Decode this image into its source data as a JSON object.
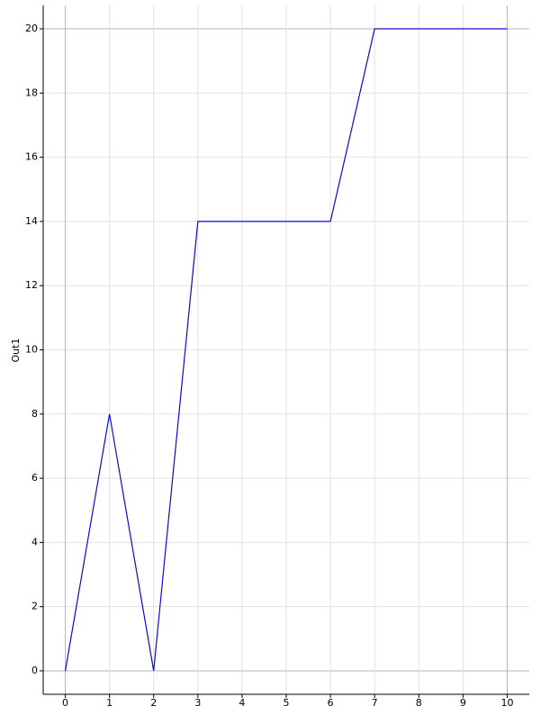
{
  "chart_data": {
    "type": "line",
    "y_label": "Out1",
    "x": [
      0,
      1,
      2,
      3,
      4,
      5,
      6,
      7,
      8,
      9,
      10
    ],
    "series": [
      {
        "color": "#0a0ad8",
        "values": [
          0,
          8,
          0,
          14,
          14,
          14,
          14,
          20,
          20,
          20,
          20
        ]
      }
    ],
    "xlim": [
      -0.5,
      10.5
    ],
    "ylim": [
      -0.73,
      20.73
    ],
    "xticks": [
      0,
      1,
      2,
      3,
      4,
      5,
      6,
      7,
      8,
      9,
      10
    ],
    "yticks": [
      0,
      2,
      4,
      6,
      8,
      10,
      12,
      14,
      16,
      18,
      20
    ],
    "grid": true
  }
}
